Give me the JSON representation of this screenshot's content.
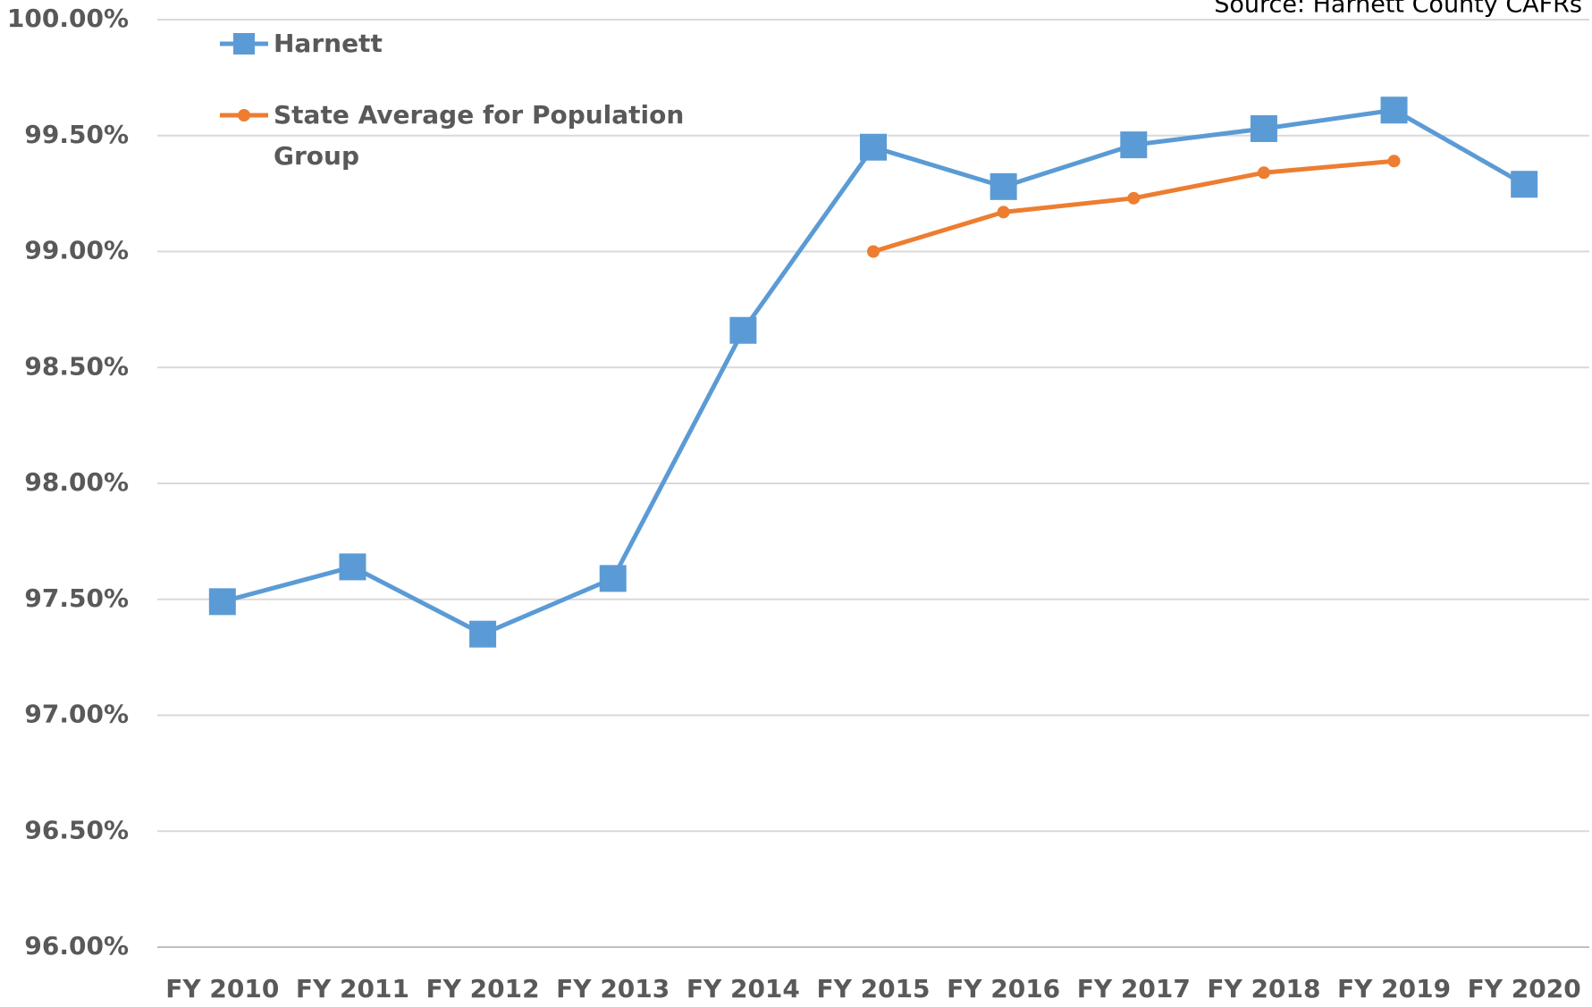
{
  "chart_data": {
    "type": "line",
    "annotation": "Source: Harnett County CAFRs",
    "categories": [
      "FY 2010",
      "FY 2011",
      "FY 2012",
      "FY 2013",
      "FY 2014",
      "FY 2015",
      "FY 2016",
      "FY 2017",
      "FY 2018",
      "FY 2019",
      "FY 2020"
    ],
    "series": [
      {
        "name": "Harnett",
        "color": "#5b9bd5",
        "marker": "square",
        "values": [
          97.49,
          97.64,
          97.35,
          97.59,
          98.66,
          99.45,
          99.28,
          99.46,
          99.53,
          99.61,
          99.29
        ]
      },
      {
        "name": "State Average for Population Group",
        "color": "#ed7d31",
        "marker": "circle",
        "values": [
          null,
          null,
          null,
          null,
          null,
          99.0,
          99.17,
          99.23,
          99.34,
          99.39,
          null
        ]
      }
    ],
    "ylim": [
      96,
      100
    ],
    "yticks": [
      {
        "value": 96,
        "label": "96.00%"
      },
      {
        "value": 96.5,
        "label": "96.50%"
      },
      {
        "value": 97,
        "label": "97.00%"
      },
      {
        "value": 97.5,
        "label": "97.50%"
      },
      {
        "value": 98,
        "label": "98.00%"
      },
      {
        "value": 98.5,
        "label": "98.50%"
      },
      {
        "value": 99,
        "label": "99.00%"
      },
      {
        "value": 99.5,
        "label": "99.50%"
      },
      {
        "value": 100,
        "label": "100.00%"
      }
    ],
    "grid": true,
    "legend": "top-left"
  }
}
